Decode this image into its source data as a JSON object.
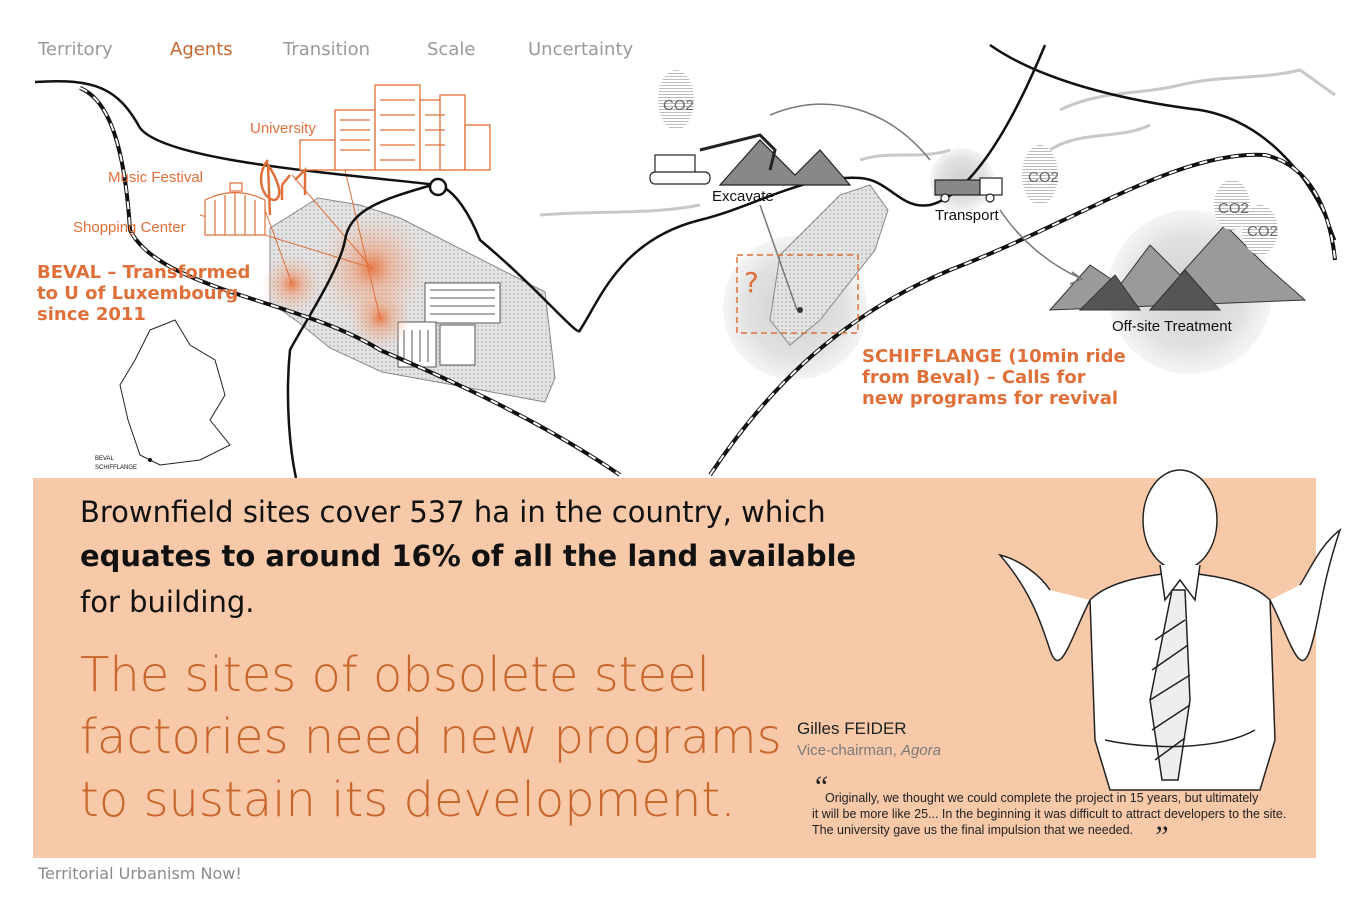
{
  "nav": {
    "items": [
      "Territory",
      "Agents",
      "Transition",
      "Scale",
      "Uncertainty"
    ],
    "active": "Agents"
  },
  "map": {
    "university": "University",
    "music_festival": "Music Festival",
    "shopping_center": "Shopping Center",
    "beval": {
      "lines": [
        "BEVAL – Transformed",
        "to U of Luxembourg",
        "since 2011"
      ]
    },
    "excavate": "Excavate",
    "transport": "Transport",
    "offsite": "Off-site Treatment",
    "co2": [
      "CO2",
      "CO2",
      "CO2",
      "CO2"
    ],
    "question": "?",
    "schifflange": {
      "lines": [
        "SCHIFFLANGE (10min ride",
        "from Beval) – Calls for",
        "new programs for revival"
      ]
    },
    "mini_map": {
      "beval": "BEVAL",
      "schifflange": "SCHIFFLANGE"
    }
  },
  "panel": {
    "statement": {
      "lines": [
        "Brownfield sites cover 537 ha in the country, which",
        "equates to around 16% of all the land available",
        "for building."
      ],
      "bold_line": 1
    },
    "headline": {
      "lines": [
        "The sites of obsolete steel",
        "factories need new programs",
        "to sustain its development."
      ]
    },
    "person": {
      "name": "Gilles FEIDER",
      "role": "Vice-chairman, ",
      "organization": "Agora"
    },
    "quote": {
      "open_mark": "“",
      "close_mark": "”",
      "lines": [
        "Originally, we thought we could complete the project in 15 years, but ultimately",
        "it will be more like 25... In the beginning it was difficult to attract developers to the site.",
        "The university gave us the final impulsion that we needed."
      ]
    }
  },
  "footer": "Territorial Urbanism Now!"
}
